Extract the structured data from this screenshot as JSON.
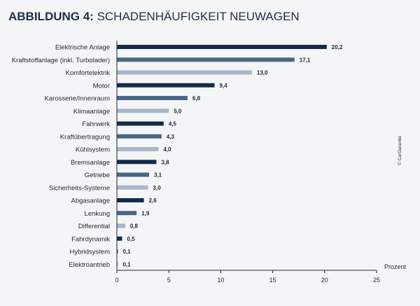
{
  "title_bold": "ABBILDUNG 4:",
  "title_rest": " SCHADENHÄUFIGKEIT NEUWAGEN",
  "credit": "© CarGarantie",
  "chart_data": {
    "type": "bar",
    "orientation": "horizontal",
    "title": "ABBILDUNG 4: SCHADENHÄUFIGKEIT NEUWAGEN",
    "xlabel": "Prozent",
    "ylabel": "",
    "xlim": [
      0,
      25
    ],
    "xticks": [
      0,
      5,
      10,
      15,
      20,
      25
    ],
    "grid": false,
    "categories": [
      "Elektrische Anlage",
      "Kraftstoffanlage (inkl. Turbolader)",
      "Komfortelektrik",
      "Motor",
      "Karosserie/Innenraum",
      "Klimaanlage",
      "Fahrwerk",
      "Kraftübertragung",
      "Kühlsystem",
      "Bremsanlage",
      "Getriebe",
      "Sicherheits-Systeme",
      "Abgasanlage",
      "Lenkung",
      "Differential",
      "Fahrdynamik",
      "Hybridsystem",
      "Elektroantrieb"
    ],
    "values": [
      20.2,
      17.1,
      13.0,
      9.4,
      6.8,
      5.0,
      4.5,
      4.3,
      4.0,
      3.8,
      3.1,
      3.0,
      2.6,
      1.9,
      0.8,
      0.5,
      0.1,
      0.1
    ],
    "value_labels": [
      "20,2",
      "17,1",
      "13,0",
      "9,4",
      "6,8",
      "5,0",
      "4,5",
      "4,3",
      "4,0",
      "3,8",
      "3,1",
      "3,0",
      "2,6",
      "1,9",
      "0,8",
      "0,5",
      "0,1",
      "0,1"
    ],
    "bar_colors": [
      "#15294a",
      "#4a6685",
      "#a8b6c8",
      "#15294a",
      "#4a6685",
      "#a8b6c8",
      "#15294a",
      "#4a6685",
      "#a8b6c8",
      "#15294a",
      "#4a6685",
      "#a8b6c8",
      "#15294a",
      "#4a6685",
      "#a8b6c8",
      "#15294a",
      "#4a6685",
      "#a8b6c8"
    ]
  }
}
